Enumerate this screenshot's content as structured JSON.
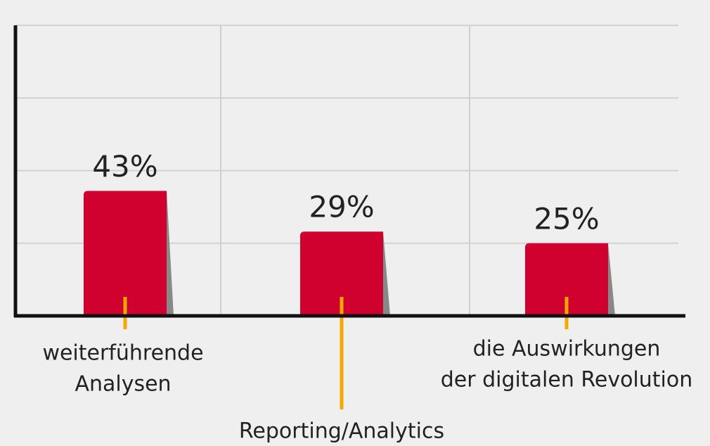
{
  "chart_data": {
    "type": "bar",
    "categories": [
      [
        "weiterführende",
        "Analysen"
      ],
      [
        "Reporting/Analytics"
      ],
      [
        "die Auswirkungen",
        "der digitalen Revolution"
      ]
    ],
    "values": [
      43,
      29,
      25
    ],
    "value_labels": [
      "43%",
      "29%",
      "25%"
    ],
    "color": "#d0002f",
    "ylim": [
      0,
      100
    ],
    "yticks": [
      0,
      25,
      50,
      75,
      100
    ],
    "grid": true
  }
}
